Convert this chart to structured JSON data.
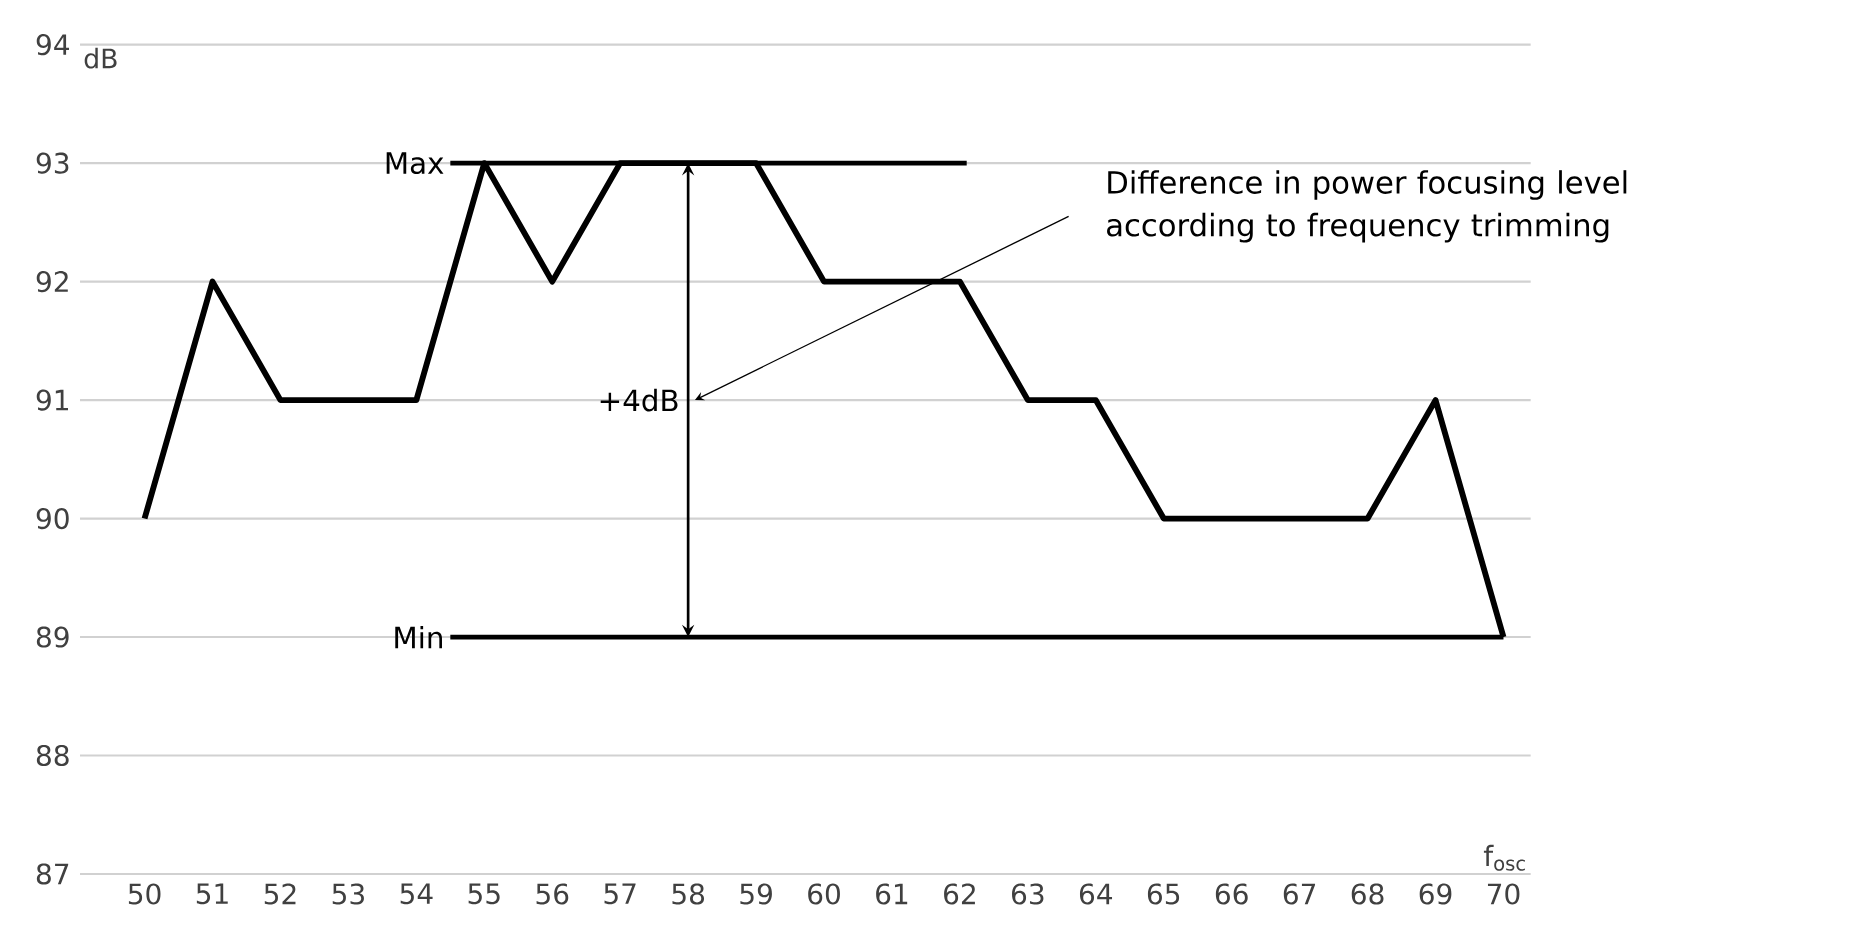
{
  "chart_data": {
    "type": "line",
    "xlabel": "f$_{osc}$",
    "ylabel": "dB",
    "x": [
      50,
      51,
      52,
      53,
      54,
      55,
      56,
      57,
      58,
      59,
      60,
      61,
      62,
      63,
      64,
      65,
      66,
      67,
      68,
      69,
      70
    ],
    "series": [
      {
        "color": "#000000",
        "values": [
          90,
          92,
          91,
          91,
          91,
          93,
          92,
          93,
          93,
          93,
          92,
          92,
          92,
          91,
          91,
          90,
          90,
          90,
          90,
          91,
          89
        ]
      },
      {
        "name": "Max",
        "color": "#000000",
        "x": [
          54.5,
          62.1
        ],
        "values": [
          93,
          93
        ]
      },
      {
        "name": "Min",
        "color": "#000000",
        "x": [
          54.5,
          70
        ],
        "values": [
          89,
          89
        ]
      }
    ],
    "annotations": [
      "+4dB",
      "Difference in power focusing level according to frequency trimming"
    ],
    "xlim": [
      49.05,
      70.4
    ],
    "ylim": [
      87,
      94
    ],
    "xticks": [
      50,
      51,
      52,
      53,
      54,
      55,
      56,
      57,
      58,
      59,
      60,
      61,
      62,
      63,
      64,
      65,
      66,
      67,
      68,
      69,
      70
    ],
    "yticks": [
      87,
      88,
      89,
      90,
      91,
      92,
      93,
      94
    ],
    "grid": "y",
    "marker": "none",
    "line_style": "solid"
  }
}
